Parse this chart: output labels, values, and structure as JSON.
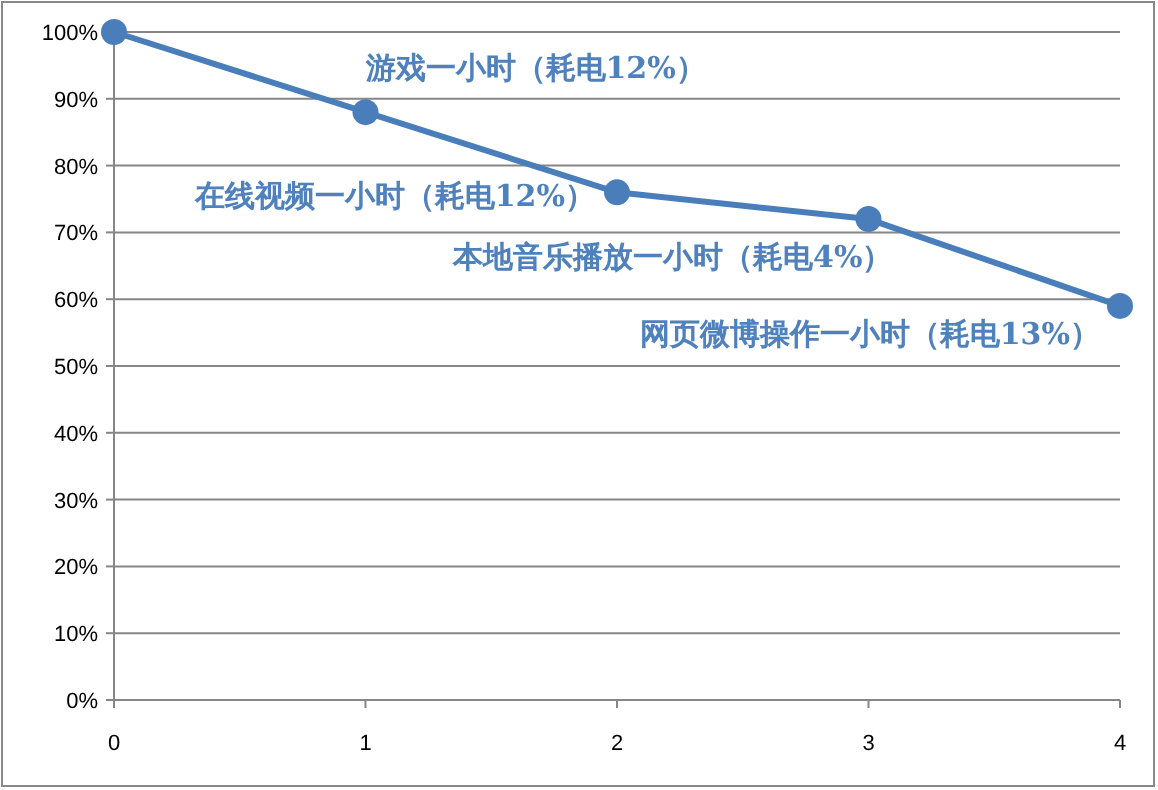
{
  "chart_data": {
    "type": "line",
    "x": [
      0,
      1,
      2,
      3,
      4
    ],
    "series": [
      {
        "color": "#4a7ebb",
        "values": [
          100,
          88,
          76,
          72,
          59
        ]
      }
    ],
    "marker": "circle",
    "grid": "y",
    "xlim": [
      0,
      4
    ],
    "xticks": [
      0,
      1,
      2,
      3,
      4
    ],
    "ylim": [
      0,
      100
    ],
    "yticks": [
      {
        "value": 0,
        "label": "0%"
      },
      {
        "value": 10,
        "label": "10%"
      },
      {
        "value": 20,
        "label": "20%"
      },
      {
        "value": 30,
        "label": "30%"
      },
      {
        "value": 40,
        "label": "40%"
      },
      {
        "value": 50,
        "label": "50%"
      },
      {
        "value": 60,
        "label": "60%"
      },
      {
        "value": 70,
        "label": "70%"
      },
      {
        "value": 80,
        "label": "80%"
      },
      {
        "value": 90,
        "label": "90%"
      },
      {
        "value": 100,
        "label": "100%"
      }
    ],
    "annotations": [
      {
        "text": "游戏一小时（耗电12%）",
        "x": 1,
        "y": 88
      },
      {
        "text": "在线视频一小时（耗电12%）",
        "x": 2,
        "y": 76
      },
      {
        "text": "本地音乐播放一小时（耗电4%）",
        "x": 3,
        "y": 72
      },
      {
        "text": "网页微博操作一小时（耗电13%）",
        "x": 4,
        "y": 59
      }
    ]
  }
}
